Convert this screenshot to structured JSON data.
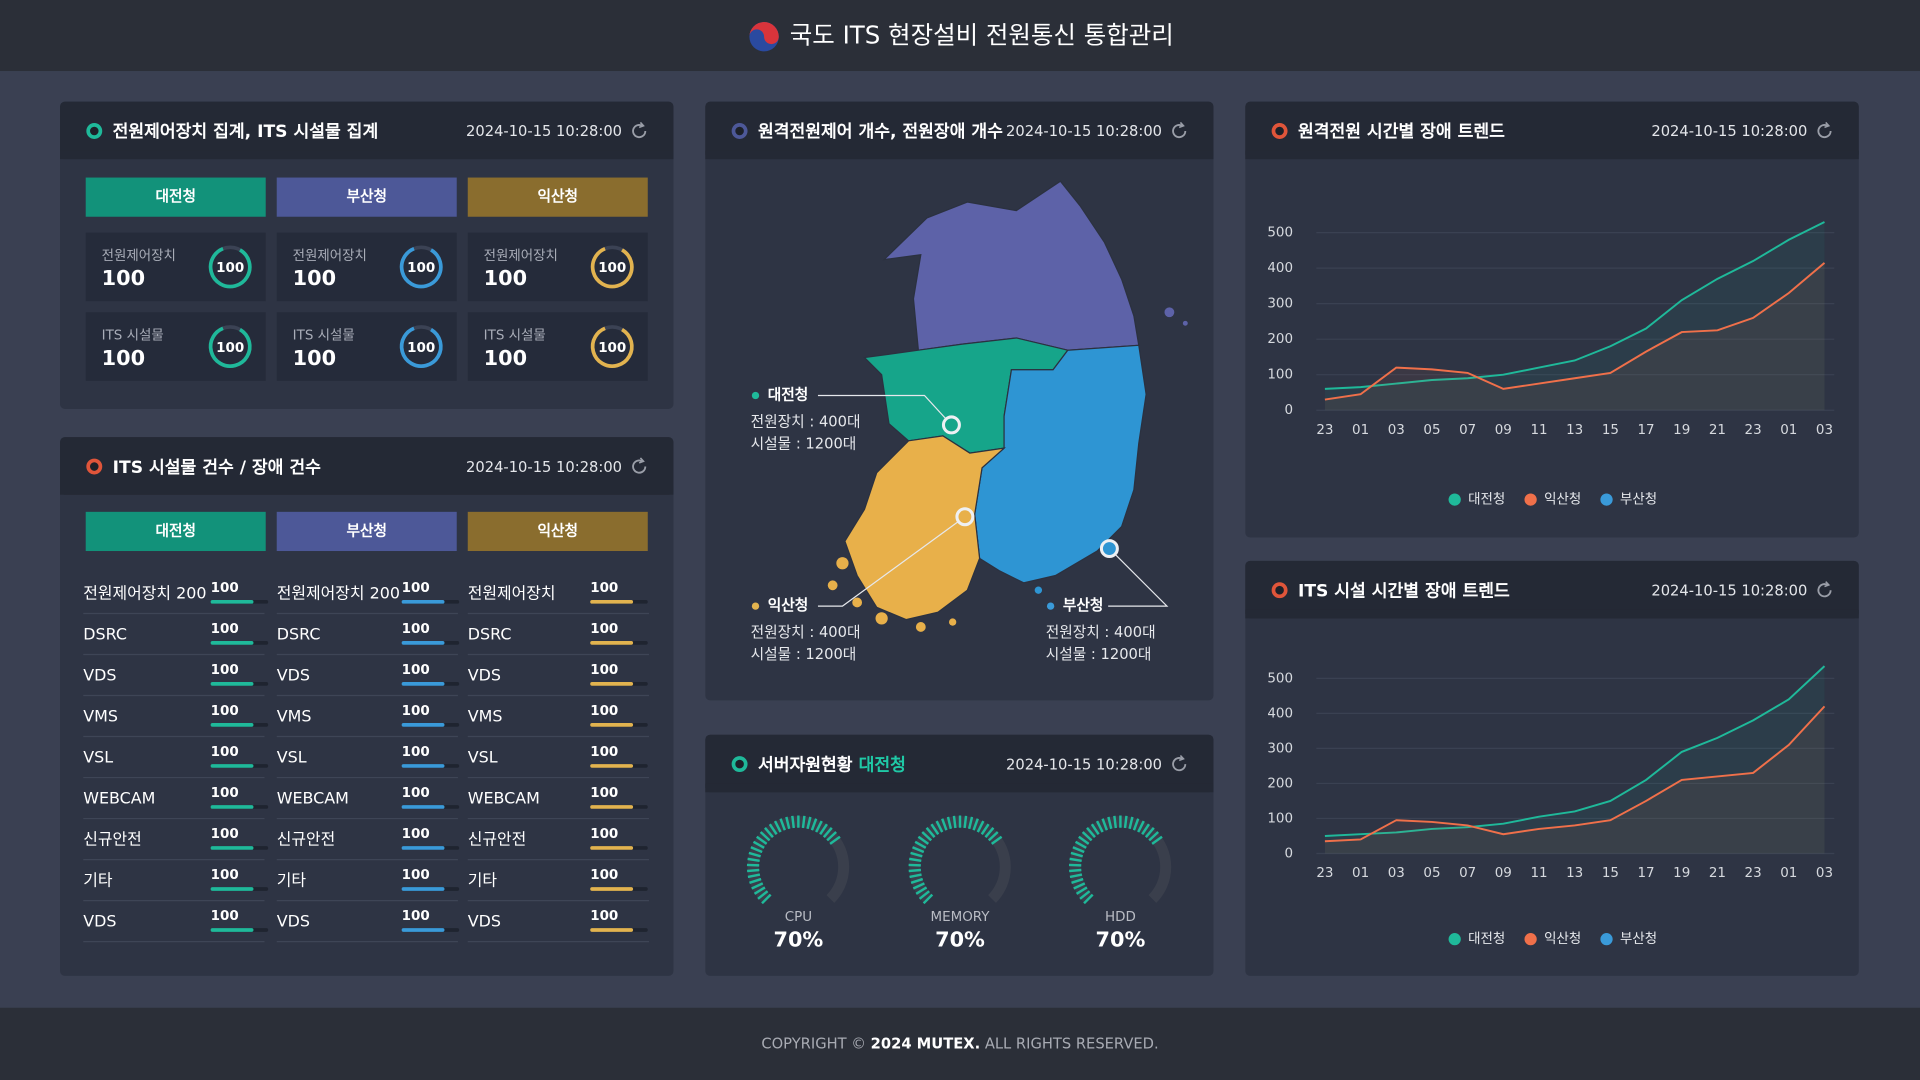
{
  "header": {
    "title": "국도 ITS 현장설비 전원통신 통합관리"
  },
  "summary": {
    "title": "전원제어장치 집계, ITS 시설물 집계",
    "time": "2024-10-15 10:28:00",
    "regions": [
      {
        "name": "대전청",
        "cards": [
          {
            "label": "전원제어장치",
            "value": 100,
            "gauge": 100
          },
          {
            "label": "ITS 시설물",
            "value": 100,
            "gauge": 100
          }
        ]
      },
      {
        "name": "부산청",
        "cards": [
          {
            "label": "전원제어장치",
            "value": 100,
            "gauge": 100
          },
          {
            "label": "ITS 시설물",
            "value": 100,
            "gauge": 100
          }
        ]
      },
      {
        "name": "익산청",
        "cards": [
          {
            "label": "전원제어장치",
            "value": 100,
            "gauge": 100
          },
          {
            "label": "ITS 시설물",
            "value": 100,
            "gauge": 100
          }
        ]
      }
    ]
  },
  "facilities": {
    "title": "ITS 시설물 건수 / 장애 건수",
    "time": "2024-10-15 10:28:00",
    "regions": [
      {
        "name": "대전청",
        "items": [
          {
            "name": "전원제어장치 200",
            "value": 100
          },
          {
            "name": "DSRC",
            "value": 100
          },
          {
            "name": "VDS",
            "value": 100
          },
          {
            "name": "VMS",
            "value": 100
          },
          {
            "name": "VSL",
            "value": 100
          },
          {
            "name": "WEBCAM",
            "value": 100
          },
          {
            "name": "신규안전",
            "value": 100
          },
          {
            "name": "기타",
            "value": 100
          },
          {
            "name": "VDS",
            "value": 100
          }
        ]
      },
      {
        "name": "부산청",
        "items": [
          {
            "name": "전원제어장치 200",
            "value": 100
          },
          {
            "name": "DSRC",
            "value": 100
          },
          {
            "name": "VDS",
            "value": 100
          },
          {
            "name": "VMS",
            "value": 100
          },
          {
            "name": "VSL",
            "value": 100
          },
          {
            "name": "WEBCAM",
            "value": 100
          },
          {
            "name": "신규안전",
            "value": 100
          },
          {
            "name": "기타",
            "value": 100
          },
          {
            "name": "VDS",
            "value": 100
          }
        ]
      },
      {
        "name": "익산청",
        "items": [
          {
            "name": "전원제어장치",
            "value": 100
          },
          {
            "name": "DSRC",
            "value": 100
          },
          {
            "name": "VDS",
            "value": 100
          },
          {
            "name": "VMS",
            "value": 100
          },
          {
            "name": "VSL",
            "value": 100
          },
          {
            "name": "WEBCAM",
            "value": 100
          },
          {
            "name": "신규안전",
            "value": 100
          },
          {
            "name": "기타",
            "value": 100
          },
          {
            "name": "VDS",
            "value": 100
          }
        ]
      }
    ]
  },
  "map": {
    "title": "원격전원제어 개수, 전원장애 개수",
    "time": "2024-10-15 10:28:00",
    "regions": [
      {
        "name": "대전청",
        "power": "전원장치 : 400대",
        "facilities": "시설물 : 1200대"
      },
      {
        "name": "익산청",
        "power": "전원장치 : 400대",
        "facilities": "시설물 : 1200대"
      },
      {
        "name": "부산청",
        "power": "전원장치 : 400대",
        "facilities": "시설물 : 1200대"
      }
    ]
  },
  "server": {
    "title": "서버자원현황",
    "region": "대전청",
    "time": "2024-10-15 10:28:00",
    "gauges": [
      {
        "label": "CPU",
        "value": 70,
        "value_label": "70%"
      },
      {
        "label": "MEMORY",
        "value": 70,
        "value_label": "70%"
      },
      {
        "label": "HDD",
        "value": 70,
        "value_label": "70%"
      }
    ]
  },
  "chart_data": [
    {
      "type": "line",
      "title": "원격전원 시간별 장애 트렌드",
      "time": "2024-10-15 10:28:00",
      "categories": [
        "23",
        "01",
        "03",
        "05",
        "07",
        "09",
        "11",
        "13",
        "15",
        "17",
        "19",
        "21",
        "23",
        "01",
        "03"
      ],
      "series": [
        {
          "name": "대전청",
          "color": "#1fb99a",
          "values": [
            60,
            65,
            75,
            85,
            90,
            100,
            120,
            140,
            180,
            230,
            310,
            370,
            420,
            480,
            530
          ]
        },
        {
          "name": "익산청",
          "color": "#f0704a",
          "values": [
            30,
            45,
            120,
            115,
            105,
            60,
            75,
            90,
            105,
            165,
            220,
            225,
            260,
            330,
            415
          ]
        },
        {
          "name": "부산청",
          "color": "#3a9ad9",
          "values": [
            null,
            null,
            null,
            null,
            null,
            null,
            null,
            null,
            null,
            null,
            null,
            null,
            null,
            null,
            null
          ]
        }
      ],
      "ylim": [
        0,
        570
      ],
      "yticks": [
        0,
        100,
        200,
        300,
        400,
        500
      ],
      "grid": true
    },
    {
      "type": "line",
      "title": "ITS 시설 시간별 장애 트렌드",
      "time": "2024-10-15 10:28:00",
      "categories": [
        "23",
        "01",
        "03",
        "05",
        "07",
        "09",
        "11",
        "13",
        "15",
        "17",
        "19",
        "21",
        "23",
        "01",
        "03"
      ],
      "series": [
        {
          "name": "대전청",
          "color": "#1fb99a",
          "values": [
            50,
            55,
            60,
            70,
            75,
            85,
            105,
            120,
            150,
            210,
            290,
            330,
            380,
            440,
            535
          ]
        },
        {
          "name": "익산청",
          "color": "#f0704a",
          "values": [
            35,
            40,
            95,
            90,
            80,
            55,
            70,
            80,
            95,
            150,
            210,
            220,
            230,
            310,
            420
          ]
        },
        {
          "name": "부산청",
          "color": "#3a9ad9",
          "values": [
            null,
            null,
            null,
            null,
            null,
            null,
            null,
            null,
            null,
            null,
            null,
            null,
            null,
            null,
            null
          ]
        }
      ],
      "ylim": [
        0,
        570
      ],
      "yticks": [
        0,
        100,
        200,
        300,
        400,
        500
      ],
      "grid": true
    }
  ],
  "footer": {
    "prefix": "COPYRIGHT ©",
    "brand": "2024 MUTEX.",
    "suffix": "ALL RIGHTS RESERVED."
  }
}
